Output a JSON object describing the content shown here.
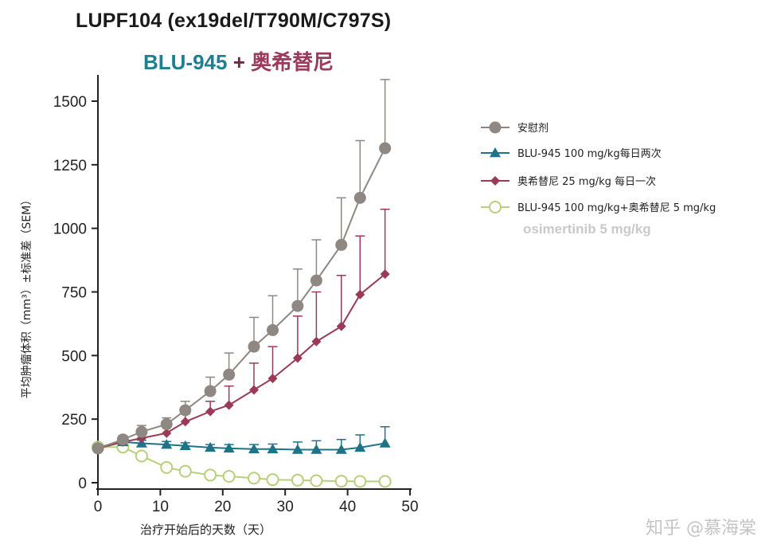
{
  "chart_data": {
    "type": "line",
    "title": "LUPF104 (ex19del/T790M/C797S)",
    "subtitle": {
      "part_a": "BLU-945",
      "plus": "+",
      "part_b": "奥希替尼"
    },
    "xlabel": "治疗开始后的天数（天）",
    "ylabel": "平均肿瘤体积（mm³）±标准差（SEM）",
    "xlim": [
      0,
      50
    ],
    "ylim": [
      0,
      1600
    ],
    "x_ticks": [
      0,
      10,
      20,
      30,
      40,
      50
    ],
    "y_ticks": [
      0,
      250,
      500,
      750,
      1000,
      1250,
      1500
    ],
    "grid": false,
    "legend_position": "right",
    "series": [
      {
        "name": "安慰剂",
        "color": "#8f8781",
        "marker": "circle-filled",
        "x": [
          0,
          4,
          7,
          11,
          14,
          18,
          21,
          25,
          28,
          32,
          35,
          39,
          42,
          46
        ],
        "y": [
          135,
          170,
          200,
          230,
          285,
          360,
          425,
          535,
          600,
          695,
          795,
          935,
          1120,
          1315
        ],
        "err": [
          15,
          15,
          25,
          25,
          35,
          55,
          85,
          115,
          135,
          145,
          160,
          185,
          225,
          270
        ]
      },
      {
        "name": "BLU-945 100 mg/kg每日两次",
        "color": "#1e7389",
        "marker": "triangle-filled",
        "x": [
          0,
          4,
          7,
          11,
          14,
          18,
          21,
          25,
          28,
          32,
          35,
          39,
          42,
          46
        ],
        "y": [
          140,
          160,
          155,
          150,
          145,
          138,
          135,
          132,
          132,
          130,
          130,
          130,
          138,
          155
        ],
        "err": [
          10,
          10,
          12,
          12,
          12,
          12,
          15,
          18,
          20,
          30,
          35,
          40,
          50,
          65
        ]
      },
      {
        "name": "奥希替尼 25 mg/kg 每日一次",
        "color": "#9a3a57",
        "marker": "diamond-filled",
        "x": [
          0,
          4,
          7,
          11,
          14,
          18,
          21,
          25,
          28,
          32,
          35,
          39,
          42,
          46
        ],
        "y": [
          135,
          160,
          175,
          195,
          240,
          280,
          305,
          365,
          410,
          490,
          555,
          615,
          740,
          820
        ],
        "err": [
          10,
          15,
          20,
          25,
          30,
          40,
          75,
          105,
          125,
          165,
          195,
          200,
          230,
          255
        ]
      },
      {
        "name": "BLU-945 100 mg/kg+奥希替尼 5 mg/kg",
        "color": "#b7d07c",
        "marker": "circle-open",
        "x": [
          0,
          4,
          7,
          11,
          14,
          18,
          21,
          25,
          28,
          32,
          35,
          39,
          42,
          46
        ],
        "y": [
          140,
          140,
          105,
          60,
          45,
          30,
          25,
          18,
          12,
          10,
          8,
          6,
          5,
          5
        ],
        "err": [
          0,
          0,
          0,
          0,
          0,
          0,
          0,
          0,
          0,
          0,
          0,
          0,
          0,
          0
        ]
      }
    ]
  },
  "ghost_text": "osimertinib 5 mg/kg",
  "watermark": "知乎 @慕海棠"
}
